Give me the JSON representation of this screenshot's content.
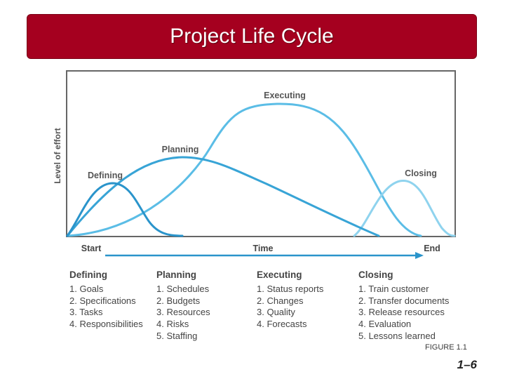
{
  "header": {
    "title": "Project Life Cycle"
  },
  "diagram": {
    "y_axis_label": "Level of effort",
    "phase_labels": {
      "defining": "Defining",
      "planning": "Planning",
      "executing": "Executing",
      "closing": "Closing"
    },
    "timeline": {
      "start": "Start",
      "time": "Time",
      "end": "End"
    },
    "colors": {
      "defining": "#2a94cb",
      "planning": "#38a4d6",
      "executing": "#5bbde6",
      "closing": "#8fd3ee",
      "frame": "#666666",
      "arrow": "#2a94cb"
    }
  },
  "phases": [
    {
      "title": "Defining",
      "items": [
        "1. Goals",
        "2. Specifications",
        "3. Tasks",
        "4. Responsibilities"
      ]
    },
    {
      "title": "Planning",
      "items": [
        "1. Schedules",
        "2. Budgets",
        "3. Resources",
        "4. Risks",
        "5. Staffing"
      ]
    },
    {
      "title": "Executing",
      "items": [
        "1. Status reports",
        "2. Changes",
        "3. Quality",
        "4. Forecasts"
      ]
    },
    {
      "title": "Closing",
      "items": [
        "1. Train customer",
        "2. Transfer documents",
        "3. Release resources",
        "4. Evaluation",
        "5. Lessons learned"
      ]
    }
  ],
  "footer": {
    "figure": "FIGURE 1.1",
    "page": "1–6"
  }
}
